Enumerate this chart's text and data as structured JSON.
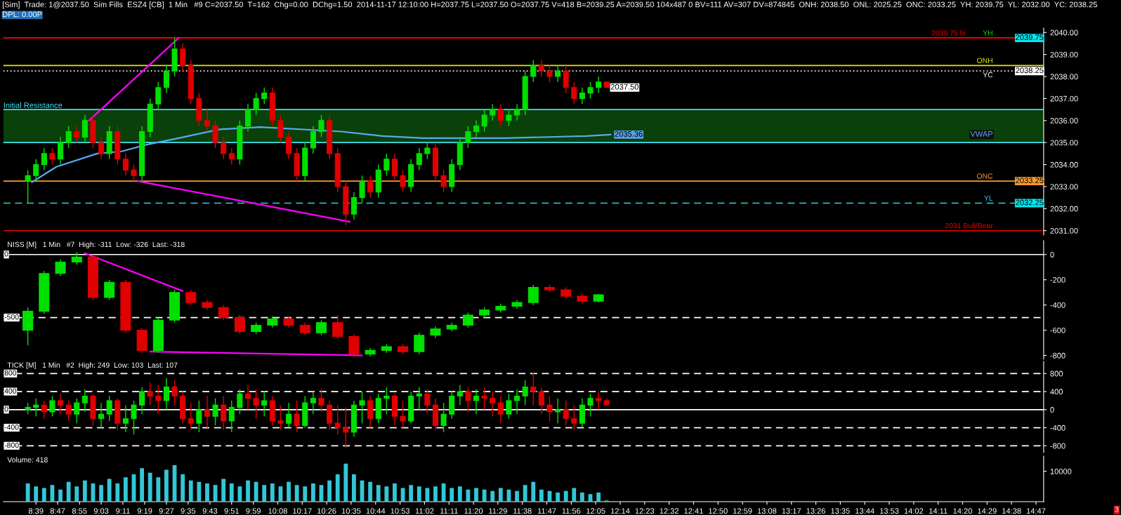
{
  "chart_data": [
    {
      "type": "candlestick",
      "title": "[Sim]  Trade: 1@2037.50  Sim Fills  ESZ4 [CB]  1 Min   #9 C=2037.50  T=162  Chg=0.00  DChg=1.50  2014-11-17 12:10:00 H=2037.75 L=2037.50 O=2037.75 V=418 B=2039.25 A=2039.50 104x487 0 BV=111 AV=307 DV=874845  ONH: 2038.50  ONL: 2025.25  ONC: 2033.25  YH: 2039.75  YL: 2032.00  YC: 2038.25",
      "subtitle": "DPL: 0.00P",
      "x": [
        8.6,
        8.65,
        8.7,
        8.75,
        8.8,
        8.85,
        8.9,
        8.95,
        9.0,
        9.05,
        9.1,
        9.15,
        9.2,
        9.25,
        9.3,
        9.35,
        9.4,
        9.45,
        9.5,
        9.55,
        9.6,
        9.65,
        9.7,
        9.75,
        9.8,
        9.85,
        9.9,
        9.95,
        10.0,
        10.05,
        10.1,
        10.15,
        10.2,
        10.25,
        10.3,
        10.35,
        10.4,
        10.45,
        10.5,
        10.55,
        10.6,
        10.65,
        10.7,
        10.75,
        10.8,
        10.85,
        10.9,
        10.95,
        11.0,
        11.05,
        11.1,
        11.15,
        11.2,
        11.25,
        11.3,
        11.35,
        11.4,
        11.45,
        11.5,
        11.55,
        11.6,
        11.65,
        11.7,
        11.75,
        11.8,
        11.85,
        11.9,
        11.95,
        12.0,
        12.05,
        12.1,
        12.15
      ],
      "ohlc": [
        [
          2033.25,
          2033.75,
          2032.25,
          2033.5
        ],
        [
          2033.5,
          2034.25,
          2033.25,
          2034.0
        ],
        [
          2034.0,
          2034.75,
          2033.75,
          2034.5
        ],
        [
          2034.5,
          2034.75,
          2034.0,
          2034.25
        ],
        [
          2034.25,
          2035.25,
          2034.0,
          2035.0
        ],
        [
          2035.0,
          2035.75,
          2034.75,
          2035.5
        ],
        [
          2035.5,
          2035.75,
          2035.0,
          2035.25
        ],
        [
          2035.25,
          2036.25,
          2035.0,
          2036.0
        ],
        [
          2036.0,
          2036.25,
          2034.75,
          2035.0
        ],
        [
          2035.0,
          2035.25,
          2034.25,
          2034.5
        ],
        [
          2034.5,
          2035.75,
          2034.25,
          2035.5
        ],
        [
          2035.5,
          2035.75,
          2034.0,
          2034.25
        ],
        [
          2034.25,
          2034.5,
          2033.5,
          2033.75
        ],
        [
          2033.75,
          2034.0,
          2033.25,
          2033.5
        ],
        [
          2033.5,
          2035.75,
          2033.25,
          2035.5
        ],
        [
          2035.5,
          2037.0,
          2035.25,
          2036.75
        ],
        [
          2036.75,
          2037.75,
          2036.5,
          2037.5
        ],
        [
          2037.5,
          2038.5,
          2037.25,
          2038.25
        ],
        [
          2038.25,
          2039.75,
          2038.0,
          2039.25
        ],
        [
          2039.25,
          2039.5,
          2038.25,
          2038.5
        ],
        [
          2038.5,
          2038.75,
          2036.75,
          2037.0
        ],
        [
          2037.0,
          2037.25,
          2035.75,
          2036.0
        ],
        [
          2036.0,
          2036.5,
          2035.5,
          2035.75
        ],
        [
          2035.75,
          2036.0,
          2034.75,
          2035.0
        ],
        [
          2035.0,
          2035.25,
          2034.25,
          2034.5
        ],
        [
          2034.5,
          2034.75,
          2034.0,
          2034.25
        ],
        [
          2034.25,
          2036.0,
          2034.0,
          2035.75
        ],
        [
          2035.75,
          2036.75,
          2035.5,
          2036.5
        ],
        [
          2036.5,
          2037.25,
          2036.25,
          2037.0
        ],
        [
          2037.0,
          2037.5,
          2036.75,
          2037.25
        ],
        [
          2037.25,
          2037.5,
          2035.75,
          2036.0
        ],
        [
          2036.0,
          2036.25,
          2035.0,
          2035.25
        ],
        [
          2035.25,
          2035.5,
          2034.25,
          2034.5
        ],
        [
          2034.5,
          2034.75,
          2033.25,
          2033.5
        ],
        [
          2033.5,
          2035.0,
          2033.25,
          2034.75
        ],
        [
          2034.75,
          2035.75,
          2034.5,
          2035.5
        ],
        [
          2035.5,
          2036.25,
          2035.25,
          2036.0
        ],
        [
          2036.0,
          2036.25,
          2034.25,
          2034.5
        ],
        [
          2034.5,
          2034.75,
          2032.75,
          2033.0
        ],
        [
          2033.0,
          2033.25,
          2031.25,
          2031.75
        ],
        [
          2031.75,
          2032.75,
          2031.5,
          2032.5
        ],
        [
          2032.5,
          2033.5,
          2032.25,
          2033.25
        ],
        [
          2033.25,
          2033.5,
          2032.5,
          2032.75
        ],
        [
          2032.75,
          2034.0,
          2032.5,
          2033.75
        ],
        [
          2033.75,
          2034.5,
          2033.5,
          2034.25
        ],
        [
          2034.25,
          2034.5,
          2033.25,
          2033.5
        ],
        [
          2033.5,
          2033.75,
          2032.75,
          2033.0
        ],
        [
          2033.0,
          2034.25,
          2032.75,
          2034.0
        ],
        [
          2034.0,
          2034.75,
          2033.75,
          2034.5
        ],
        [
          2034.5,
          2035.0,
          2034.25,
          2034.75
        ],
        [
          2034.75,
          2035.0,
          2033.25,
          2033.5
        ],
        [
          2033.5,
          2033.75,
          2032.75,
          2033.0
        ],
        [
          2033.0,
          2034.25,
          2032.75,
          2034.0
        ],
        [
          2034.0,
          2035.25,
          2033.75,
          2035.0
        ],
        [
          2035.0,
          2035.75,
          2034.75,
          2035.5
        ],
        [
          2035.5,
          2036.0,
          2035.25,
          2035.75
        ],
        [
          2035.75,
          2036.5,
          2035.5,
          2036.25
        ],
        [
          2036.25,
          2036.75,
          2036.0,
          2036.5
        ],
        [
          2036.5,
          2036.75,
          2035.75,
          2036.0
        ],
        [
          2036.0,
          2036.5,
          2035.75,
          2036.25
        ],
        [
          2036.25,
          2036.75,
          2036.0,
          2036.5
        ],
        [
          2036.5,
          2038.25,
          2036.25,
          2038.0
        ],
        [
          2038.0,
          2038.75,
          2037.75,
          2038.5
        ],
        [
          2038.5,
          2038.75,
          2038.0,
          2038.25
        ],
        [
          2038.25,
          2038.5,
          2037.75,
          2038.0
        ],
        [
          2038.0,
          2038.5,
          2037.75,
          2038.25
        ],
        [
          2038.25,
          2038.5,
          2037.25,
          2037.5
        ],
        [
          2037.5,
          2037.75,
          2036.75,
          2037.0
        ],
        [
          2037.0,
          2037.5,
          2036.75,
          2037.25
        ],
        [
          2037.25,
          2037.75,
          2037.0,
          2037.5
        ],
        [
          2037.5,
          2038.0,
          2037.25,
          2037.75
        ],
        [
          2037.75,
          2037.75,
          2037.5,
          2037.5
        ]
      ],
      "colors": [
        "#00e000",
        "#00e000",
        "#00e000",
        "#e00000",
        "#00e000",
        "#00e000",
        "#e00000",
        "#00e000",
        "#e00000",
        "#e00000",
        "#00e000",
        "#e00000",
        "#e00000",
        "#e00000",
        "#00e000",
        "#00e000",
        "#00e000",
        "#00e000",
        "#00e000",
        "#e00000",
        "#e00000",
        "#e00000",
        "#e00000",
        "#e00000",
        "#e00000",
        "#e00000",
        "#00e000",
        "#00e000",
        "#00e000",
        "#00e000",
        "#e00000",
        "#e00000",
        "#e00000",
        "#e00000",
        "#00e000",
        "#00e000",
        "#00e000",
        "#e00000",
        "#e00000",
        "#e00000",
        "#00e000",
        "#00e000",
        "#e00000",
        "#00e000",
        "#00e000",
        "#e00000",
        "#e00000",
        "#00e000",
        "#00e000",
        "#00e000",
        "#e00000",
        "#e00000",
        "#00e000",
        "#00e000",
        "#00e000",
        "#00e000",
        "#00e000",
        "#00e000",
        "#e00000",
        "#00e000",
        "#00e000",
        "#00e000",
        "#00e000",
        "#e00000",
        "#e00000",
        "#00e000",
        "#e00000",
        "#e00000",
        "#00e000",
        "#00e000",
        "#00e000",
        "#e00000"
      ],
      "series": [
        {
          "type": "line",
          "name": "VWAP",
          "color": "#5aa8f0",
          "x": [
            8.625,
            8.775,
            9.025,
            9.175,
            9.325,
            9.525,
            9.775,
            10.025,
            10.525,
            10.775,
            11.025,
            11.525,
            12.025,
            12.175
          ],
          "values": [
            2033.2,
            2033.9,
            2034.5,
            2034.6,
            2034.9,
            2035.2,
            2035.6,
            2035.7,
            2035.5,
            2035.3,
            2035.2,
            2035.2,
            2035.3,
            2035.36
          ]
        },
        {
          "type": "line",
          "color": "#ff00ff",
          "x": [
            8.975,
            9.525
          ],
          "values": [
            2036.0,
            2039.75
          ]
        },
        {
          "type": "line",
          "color": "#ff00ff",
          "x": [
            9.275,
            10.575
          ],
          "values": [
            2033.25,
            2031.4
          ]
        }
      ],
      "bands": [
        {
          "axis": "y",
          "from": 2035.0,
          "to": 2036.5,
          "label": "Initial Resistance",
          "color": "#0a400a"
        }
      ],
      "ref_lines": [
        {
          "axis": "y",
          "value": 2039.75,
          "label": "YH",
          "color": "#00e000"
        },
        {
          "axis": "y",
          "value": 2039.75,
          "label": "2039.75 hi",
          "color": "#e00000"
        },
        {
          "axis": "y",
          "value": 2038.5,
          "label": "ONH",
          "color": "#e8e800"
        },
        {
          "axis": "y",
          "value": 2038.25,
          "label": "YC",
          "color": "#ffffff",
          "line_style": "dotted"
        },
        {
          "axis": "y",
          "value": 2036.5,
          "color": "#40e0f0"
        },
        {
          "axis": "y",
          "value": 2035.0,
          "color": "#40e0f0"
        },
        {
          "axis": "y",
          "value": 2033.25,
          "label": "ONC",
          "color": "#ff9a30"
        },
        {
          "axis": "y",
          "value": 2032.25,
          "label": "YL",
          "color": "#30d0e0",
          "line_style": "dashed"
        },
        {
          "axis": "y",
          "value": 2031.0,
          "label": "2031 Bull/Bear",
          "color": "#e00000"
        }
      ],
      "annotations": [
        {
          "text": "2039.75",
          "x": 14.83,
          "y": 2039.75
        },
        {
          "text": "2038.25",
          "x": 14.83,
          "y": 2038.25
        },
        {
          "text": "2037.50",
          "x": 12.15,
          "y": 2037.5
        },
        {
          "text": "2035.36",
          "x": 12.175,
          "y": 2035.36
        },
        {
          "text": "2033.25",
          "x": 14.83,
          "y": 2033.25
        },
        {
          "text": "2032.25",
          "x": 14.83,
          "y": 2032.25
        }
      ],
      "ylim": [
        2030.8,
        2040.2
      ],
      "yticks": [
        {
          "value": 2031,
          "label": "2031.00"
        },
        {
          "value": 2032,
          "label": "2032.00"
        },
        {
          "value": 2033,
          "label": "2033.00"
        },
        {
          "value": 2034,
          "label": "2034.00"
        },
        {
          "value": 2035,
          "label": "2035.00"
        },
        {
          "value": 2036,
          "label": "2036.00"
        },
        {
          "value": 2037,
          "label": "2037.00"
        },
        {
          "value": 2038,
          "label": "2038.00"
        },
        {
          "value": 2039,
          "label": "2039.00"
        },
        {
          "value": 2040,
          "label": "2040.00"
        }
      ],
      "xlim": [
        8.45,
        14.83
      ],
      "tick_labels": "y"
    },
    {
      "type": "candlestick",
      "title": "NISS [M]   1 Min   #7  High: -311  Low: -326  Last: -318",
      "x": [
        8.6,
        8.7,
        8.8,
        8.9,
        9.0,
        9.1,
        9.2,
        9.3,
        9.4,
        9.5,
        9.6,
        9.7,
        9.8,
        9.9,
        10.0,
        10.1,
        10.2,
        10.3,
        10.4,
        10.5,
        10.6,
        10.7,
        10.8,
        10.9,
        11.0,
        11.1,
        11.2,
        11.3,
        11.4,
        11.5,
        11.6,
        11.7,
        11.8,
        11.9,
        12.0,
        12.1
      ],
      "ohlc": [
        [
          -600,
          -420,
          -720,
          -450
        ],
        [
          -450,
          -130,
          -470,
          -150
        ],
        [
          -150,
          -40,
          -170,
          -60
        ],
        [
          -60,
          20,
          -80,
          -20
        ],
        [
          -20,
          0,
          -360,
          -340
        ],
        [
          -340,
          -200,
          -360,
          -220
        ],
        [
          -220,
          -200,
          -620,
          -600
        ],
        [
          -600,
          -580,
          -780,
          -760
        ],
        [
          -760,
          -500,
          -780,
          -520
        ],
        [
          -520,
          -280,
          -540,
          -300
        ],
        [
          -300,
          -280,
          -400,
          -380
        ],
        [
          -380,
          -360,
          -440,
          -420
        ],
        [
          -420,
          -400,
          -520,
          -500
        ],
        [
          -500,
          -480,
          -630,
          -610
        ],
        [
          -610,
          -540,
          -630,
          -560
        ],
        [
          -560,
          -490,
          -580,
          -510
        ],
        [
          -510,
          -490,
          -580,
          -560
        ],
        [
          -560,
          -540,
          -640,
          -620
        ],
        [
          -620,
          -520,
          -640,
          -540
        ],
        [
          -540,
          -480,
          -670,
          -650
        ],
        [
          -650,
          -630,
          -810,
          -790
        ],
        [
          -790,
          -740,
          -810,
          -760
        ],
        [
          -760,
          -710,
          -780,
          -730
        ],
        [
          -730,
          -710,
          -790,
          -770
        ],
        [
          -770,
          -620,
          -790,
          -640
        ],
        [
          -640,
          -570,
          -660,
          -590
        ],
        [
          -590,
          -540,
          -610,
          -560
        ],
        [
          -560,
          -460,
          -580,
          -480
        ],
        [
          -480,
          -420,
          -500,
          -440
        ],
        [
          -440,
          -390,
          -460,
          -410
        ],
        [
          -410,
          -360,
          -430,
          -380
        ],
        [
          -380,
          -240,
          -400,
          -260
        ],
        [
          -260,
          -240,
          -300,
          -280
        ],
        [
          -280,
          -260,
          -350,
          -330
        ],
        [
          -330,
          -310,
          -390,
          -370
        ],
        [
          -370,
          -311,
          -380,
          -318
        ]
      ],
      "colors": [
        "#00e000",
        "#00e000",
        "#00e000",
        "#00e000",
        "#e00000",
        "#00e000",
        "#e00000",
        "#e00000",
        "#00e000",
        "#00e000",
        "#e00000",
        "#e00000",
        "#e00000",
        "#e00000",
        "#00e000",
        "#00e000",
        "#e00000",
        "#e00000",
        "#00e000",
        "#e00000",
        "#e00000",
        "#00e000",
        "#00e000",
        "#e00000",
        "#00e000",
        "#00e000",
        "#00e000",
        "#00e000",
        "#00e000",
        "#00e000",
        "#00e000",
        "#00e000",
        "#e00000",
        "#e00000",
        "#e00000",
        "#00e000"
      ],
      "series": [
        {
          "type": "line",
          "color": "#ff00ff",
          "x": [
            8.95,
            9.55
          ],
          "values": [
            10,
            -290
          ]
        },
        {
          "type": "line",
          "color": "#ff00ff",
          "x": [
            9.35,
            10.65
          ],
          "values": [
            -770,
            -800
          ]
        }
      ],
      "ref_lines": [
        {
          "axis": "y",
          "value": 0,
          "label": "0",
          "color": "#ffffff"
        },
        {
          "axis": "y",
          "value": -500,
          "label": "-500",
          "color": "#ffffff",
          "line_style": "dashed"
        }
      ],
      "ylim": [
        -830,
        110
      ],
      "yticks": [
        0,
        -200,
        -400,
        -600,
        -800
      ],
      "xlim": [
        8.45,
        14.83
      ],
      "tick_labels": "y"
    },
    {
      "type": "candlestick",
      "title": "TICK [M]   1 Min   #2  High: 249  Low: 103  Last: 107",
      "x": [
        8.6,
        8.65,
        8.7,
        8.75,
        8.8,
        8.85,
        8.9,
        8.95,
        9.0,
        9.05,
        9.1,
        9.15,
        9.2,
        9.25,
        9.3,
        9.35,
        9.4,
        9.45,
        9.5,
        9.55,
        9.6,
        9.65,
        9.7,
        9.75,
        9.8,
        9.85,
        9.9,
        9.95,
        10.0,
        10.05,
        10.1,
        10.15,
        10.2,
        10.25,
        10.3,
        10.35,
        10.4,
        10.45,
        10.5,
        10.55,
        10.6,
        10.65,
        10.7,
        10.75,
        10.8,
        10.85,
        10.9,
        10.95,
        11.0,
        11.05,
        11.1,
        11.15,
        11.2,
        11.25,
        11.3,
        11.35,
        11.4,
        11.45,
        11.5,
        11.55,
        11.6,
        11.65,
        11.7,
        11.75,
        11.8,
        11.85,
        11.9,
        11.95,
        12.0,
        12.05,
        12.1,
        12.15
      ],
      "ohlc": [
        [
          0,
          150,
          -100,
          50
        ],
        [
          50,
          250,
          -150,
          100
        ],
        [
          100,
          200,
          -200,
          -50
        ],
        [
          -50,
          300,
          -150,
          200
        ],
        [
          200,
          350,
          -100,
          100
        ],
        [
          100,
          200,
          -250,
          -100
        ],
        [
          -100,
          250,
          -300,
          150
        ],
        [
          150,
          450,
          -50,
          300
        ],
        [
          300,
          350,
          -350,
          -200
        ],
        [
          -200,
          150,
          -400,
          -100
        ],
        [
          -100,
          300,
          -250,
          200
        ],
        [
          200,
          250,
          -450,
          -300
        ],
        [
          -300,
          100,
          -500,
          -200
        ],
        [
          -200,
          200,
          -550,
          100
        ],
        [
          100,
          500,
          -100,
          400
        ],
        [
          400,
          600,
          100,
          300
        ],
        [
          300,
          550,
          -100,
          200
        ],
        [
          200,
          700,
          0,
          500
        ],
        [
          500,
          650,
          100,
          300
        ],
        [
          300,
          400,
          -300,
          -200
        ],
        [
          -200,
          150,
          -450,
          -300
        ],
        [
          -300,
          200,
          -500,
          0
        ],
        [
          0,
          300,
          -400,
          -150
        ],
        [
          -150,
          250,
          -350,
          100
        ],
        [
          100,
          300,
          -450,
          -250
        ],
        [
          -250,
          200,
          -500,
          50
        ],
        [
          50,
          450,
          -100,
          350
        ],
        [
          350,
          550,
          0,
          250
        ],
        [
          250,
          450,
          -200,
          100
        ],
        [
          100,
          400,
          -150,
          200
        ],
        [
          200,
          300,
          -350,
          -250
        ],
        [
          -250,
          100,
          -450,
          -300
        ],
        [
          -300,
          150,
          -400,
          -100
        ],
        [
          -100,
          200,
          -500,
          -350
        ],
        [
          -350,
          300,
          -400,
          150
        ],
        [
          150,
          400,
          -100,
          250
        ],
        [
          250,
          450,
          -50,
          100
        ],
        [
          100,
          200,
          -450,
          -300
        ],
        [
          -300,
          100,
          -550,
          -400
        ],
        [
          -400,
          50,
          -850,
          -500
        ],
        [
          -500,
          200,
          -600,
          100
        ],
        [
          100,
          400,
          -300,
          200
        ],
        [
          200,
          300,
          -400,
          -200
        ],
        [
          -200,
          350,
          -300,
          250
        ],
        [
          250,
          500,
          -100,
          300
        ],
        [
          300,
          350,
          -350,
          -150
        ],
        [
          -150,
          200,
          -400,
          -250
        ],
        [
          -250,
          400,
          -300,
          300
        ],
        [
          300,
          500,
          0,
          350
        ],
        [
          350,
          450,
          -100,
          100
        ],
        [
          100,
          250,
          -450,
          -350
        ],
        [
          -350,
          150,
          -500,
          -100
        ],
        [
          -100,
          400,
          -200,
          300
        ],
        [
          300,
          550,
          100,
          400
        ],
        [
          400,
          500,
          -50,
          200
        ],
        [
          200,
          450,
          -100,
          300
        ],
        [
          300,
          500,
          0,
          250
        ],
        [
          250,
          400,
          -150,
          150
        ],
        [
          150,
          300,
          -300,
          -100
        ],
        [
          -100,
          350,
          -200,
          200
        ],
        [
          200,
          450,
          -100,
          300
        ],
        [
          300,
          650,
          100,
          500
        ],
        [
          500,
          820,
          100,
          400
        ],
        [
          400,
          500,
          -100,
          100
        ],
        [
          100,
          300,
          -250,
          -50
        ],
        [
          -50,
          250,
          -300,
          0
        ],
        [
          0,
          200,
          -350,
          -200
        ],
        [
          -200,
          100,
          -450,
          -300
        ],
        [
          -300,
          250,
          -400,
          100
        ],
        [
          100,
          350,
          -150,
          250
        ],
        [
          250,
          400,
          0,
          200
        ],
        [
          200,
          249,
          103,
          107
        ]
      ],
      "colors": [
        "#00e000",
        "#00e000",
        "#e00000",
        "#00e000",
        "#e00000",
        "#e00000",
        "#00e000",
        "#00e000",
        "#e00000",
        "#00e000",
        "#00e000",
        "#e00000",
        "#00e000",
        "#00e000",
        "#00e000",
        "#e00000",
        "#e00000",
        "#00e000",
        "#e00000",
        "#e00000",
        "#e00000",
        "#00e000",
        "#e00000",
        "#00e000",
        "#e00000",
        "#00e000",
        "#00e000",
        "#e00000",
        "#e00000",
        "#00e000",
        "#e00000",
        "#e00000",
        "#00e000",
        "#e00000",
        "#00e000",
        "#00e000",
        "#e00000",
        "#e00000",
        "#e00000",
        "#e00000",
        "#00e000",
        "#00e000",
        "#e00000",
        "#00e000",
        "#00e000",
        "#e00000",
        "#e00000",
        "#00e000",
        "#00e000",
        "#e00000",
        "#e00000",
        "#00e000",
        "#00e000",
        "#00e000",
        "#e00000",
        "#00e000",
        "#e00000",
        "#e00000",
        "#e00000",
        "#00e000",
        "#00e000",
        "#00e000",
        "#e00000",
        "#e00000",
        "#e00000",
        "#00e000",
        "#e00000",
        "#e00000",
        "#00e000",
        "#00e000",
        "#e00000",
        "#e00000"
      ],
      "ref_lines": [
        {
          "axis": "y",
          "value": 800,
          "label": "800",
          "color": "#ffffff",
          "line_style": "dashed"
        },
        {
          "axis": "y",
          "value": 400,
          "label": "400",
          "color": "#ffffff",
          "line_style": "dashed"
        },
        {
          "axis": "y",
          "value": 0,
          "label": "0",
          "color": "#ffffff"
        },
        {
          "axis": "y",
          "value": -400,
          "label": "-400",
          "color": "#ffffff",
          "line_style": "dashed"
        },
        {
          "axis": "y",
          "value": -800,
          "label": "-800",
          "color": "#ffffff",
          "line_style": "dashed"
        }
      ],
      "ylim": [
        -950,
        1070
      ],
      "yticks": [
        800,
        400,
        0,
        -400,
        -800
      ],
      "xlim": [
        8.45,
        14.83
      ],
      "tick_labels": "y"
    },
    {
      "type": "bar",
      "title": "Volume: 418",
      "color": "#33c6d6",
      "x": [
        8.6,
        8.65,
        8.7,
        8.75,
        8.8,
        8.85,
        8.9,
        8.95,
        9.0,
        9.05,
        9.1,
        9.15,
        9.2,
        9.25,
        9.3,
        9.35,
        9.4,
        9.45,
        9.5,
        9.55,
        9.6,
        9.65,
        9.7,
        9.75,
        9.8,
        9.85,
        9.9,
        9.95,
        10.0,
        10.05,
        10.1,
        10.15,
        10.2,
        10.25,
        10.3,
        10.35,
        10.4,
        10.45,
        10.5,
        10.55,
        10.6,
        10.65,
        10.7,
        10.75,
        10.8,
        10.85,
        10.9,
        10.95,
        11.0,
        11.05,
        11.1,
        11.15,
        11.2,
        11.25,
        11.3,
        11.35,
        11.4,
        11.45,
        11.5,
        11.55,
        11.6,
        11.65,
        11.7,
        11.75,
        11.8,
        11.85,
        11.9,
        11.95,
        12.0,
        12.05,
        12.1,
        12.15
      ],
      "values": [
        6000,
        5000,
        4500,
        5500,
        4000,
        6500,
        5000,
        7000,
        6000,
        5500,
        7500,
        6000,
        8000,
        9000,
        11000,
        9500,
        8000,
        10500,
        12000,
        9000,
        7000,
        6500,
        6000,
        5500,
        7500,
        6000,
        5000,
        7000,
        6500,
        5500,
        6000,
        5000,
        6500,
        5500,
        5000,
        6000,
        5500,
        7000,
        9000,
        12500,
        9000,
        7000,
        6500,
        5500,
        5000,
        6000,
        4500,
        5500,
        5000,
        4500,
        5000,
        6000,
        4500,
        5000,
        4000,
        4500,
        4000,
        3500,
        4500,
        4000,
        3500,
        5500,
        6500,
        4000,
        3500,
        3000,
        3500,
        4500,
        3000,
        2500,
        3000,
        418
      ],
      "annotations": [
        "3"
      ],
      "ylim": [
        0,
        15000
      ],
      "yticks": [
        10000
      ],
      "xlim": [
        8.45,
        14.83
      ],
      "xticks": [
        {
          "value": 8.65,
          "label": "8:39"
        },
        {
          "value": 8.783,
          "label": "8:47"
        },
        {
          "value": 8.917,
          "label": "8:55"
        },
        {
          "value": 9.05,
          "label": "9:03"
        },
        {
          "value": 9.183,
          "label": "9:11"
        },
        {
          "value": 9.317,
          "label": "9:19"
        },
        {
          "value": 9.45,
          "label": "9:27"
        },
        {
          "value": 9.583,
          "label": "9:35"
        },
        {
          "value": 9.717,
          "label": "9:43"
        },
        {
          "value": 9.85,
          "label": "9:51"
        },
        {
          "value": 9.983,
          "label": "9:59"
        },
        {
          "value": 10.133,
          "label": "10:08"
        },
        {
          "value": 10.283,
          "label": "10:17"
        },
        {
          "value": 10.433,
          "label": "10:26"
        },
        {
          "value": 10.583,
          "label": "10:35"
        },
        {
          "value": 10.733,
          "label": "10:44"
        },
        {
          "value": 10.883,
          "label": "10:53"
        },
        {
          "value": 11.033,
          "label": "11:02"
        },
        {
          "value": 11.183,
          "label": "11:11"
        },
        {
          "value": 11.333,
          "label": "11:20"
        },
        {
          "value": 11.483,
          "label": "11:29"
        },
        {
          "value": 11.633,
          "label": "11:38"
        },
        {
          "value": 11.783,
          "label": "11:47"
        },
        {
          "value": 11.933,
          "label": "11:56"
        },
        {
          "value": 12.083,
          "label": "12:05"
        },
        {
          "value": 12.233,
          "label": "12:14"
        },
        {
          "value": 12.383,
          "label": "12:23"
        },
        {
          "value": 12.533,
          "label": "12:32"
        },
        {
          "value": 12.683,
          "label": "12:41"
        },
        {
          "value": 12.833,
          "label": "12:50"
        },
        {
          "value": 12.983,
          "label": "12:59"
        },
        {
          "value": 13.133,
          "label": "13:08"
        },
        {
          "value": 13.283,
          "label": "13:17"
        },
        {
          "value": 13.433,
          "label": "13:26"
        },
        {
          "value": 13.583,
          "label": "13:35"
        },
        {
          "value": 13.733,
          "label": "13:44"
        },
        {
          "value": 13.883,
          "label": "13:53"
        },
        {
          "value": 14.033,
          "label": "14:02"
        },
        {
          "value": 14.183,
          "label": "14:11"
        },
        {
          "value": 14.333,
          "label": "14:20"
        },
        {
          "value": 14.483,
          "label": "14:29"
        },
        {
          "value": 14.633,
          "label": "14:38"
        },
        {
          "value": 14.783,
          "label": "14:47"
        }
      ]
    }
  ]
}
